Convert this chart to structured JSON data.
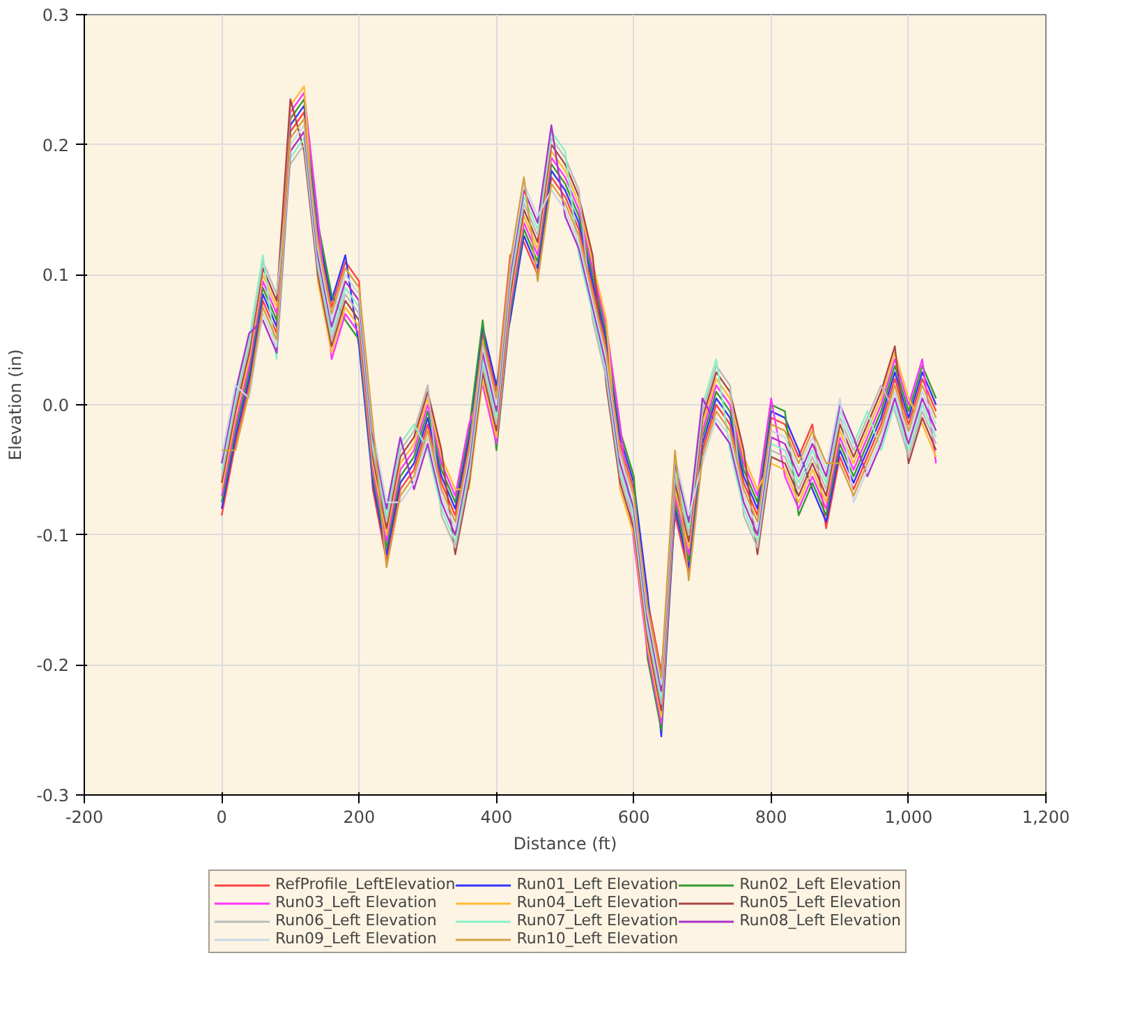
{
  "chart_data": {
    "type": "line",
    "xlabel": "Distance (ft)",
    "ylabel": "Elevation (in)",
    "xlim": [
      -200,
      1200
    ],
    "xticks": [
      -200,
      0,
      200,
      400,
      600,
      800,
      {
        "value": 1000,
        "label": "1,000"
      },
      {
        "value": 1200,
        "label": "1,200"
      }
    ],
    "ylim": [
      -0.3,
      0.3
    ],
    "yticks": [
      {
        "value": -0.3,
        "label": "-0.3"
      },
      {
        "value": -0.2,
        "label": "-0.2"
      },
      {
        "value": -0.1,
        "label": "-0.1"
      },
      {
        "value": 0,
        "label": "0.0"
      },
      {
        "value": 0.1,
        "label": "0.1"
      },
      {
        "value": 0.2,
        "label": "0.2"
      },
      {
        "value": 0.3,
        "label": "0.3"
      }
    ],
    "grid": true,
    "legend": "bottom",
    "line_style": "solid",
    "x": [
      0,
      20,
      40,
      60,
      80,
      100,
      120,
      140,
      160,
      180,
      200,
      220,
      240,
      260,
      280,
      300,
      320,
      340,
      360,
      380,
      400,
      420,
      440,
      460,
      480,
      500,
      520,
      540,
      560,
      580,
      600,
      620,
      640,
      660,
      680,
      700,
      720,
      740,
      760,
      780,
      800,
      820,
      840,
      860,
      880,
      900,
      920,
      940,
      960,
      980,
      1000,
      1020,
      1040
    ],
    "series": [
      {
        "name": "RefProfile_LeftElevation",
        "color": "#ff4040",
        "values": [
          -0.085,
          -0.03,
          0.015,
          0.08,
          0.055,
          0.21,
          0.225,
          0.13,
          0.075,
          0.11,
          0.095,
          -0.065,
          -0.12,
          -0.065,
          -0.05,
          -0.015,
          -0.06,
          -0.085,
          -0.03,
          0.055,
          0.01,
          0.115,
          0.125,
          0.1,
          0.175,
          0.16,
          0.135,
          0.09,
          0.045,
          -0.03,
          -0.065,
          -0.15,
          -0.205,
          -0.085,
          -0.13,
          -0.035,
          0.0,
          -0.015,
          -0.06,
          -0.085,
          -0.01,
          -0.015,
          -0.04,
          -0.015,
          -0.095,
          -0.04,
          -0.065,
          -0.04,
          -0.015,
          0.02,
          -0.015,
          0.02,
          -0.005
        ]
      },
      {
        "name": "Run01_Left Elevation",
        "color": "#3333ff",
        "values": [
          -0.08,
          -0.025,
          0.02,
          0.085,
          0.06,
          0.215,
          0.23,
          0.135,
          0.08,
          0.115,
          0.045,
          -0.06,
          -0.115,
          -0.06,
          -0.045,
          -0.01,
          -0.055,
          -0.08,
          -0.025,
          0.06,
          0.015,
          0.065,
          0.13,
          0.105,
          0.18,
          0.165,
          0.14,
          0.095,
          0.05,
          -0.025,
          -0.06,
          -0.145,
          -0.255,
          -0.08,
          -0.125,
          -0.03,
          0.005,
          -0.01,
          -0.055,
          -0.08,
          -0.005,
          -0.01,
          -0.035,
          -0.065,
          -0.09,
          -0.035,
          -0.06,
          -0.035,
          -0.01,
          0.025,
          -0.01,
          0.025,
          0.0
        ]
      },
      {
        "name": "Run02_Left Elevation",
        "color": "#339933",
        "values": [
          -0.075,
          -0.02,
          0.025,
          0.09,
          0.065,
          0.22,
          0.235,
          0.14,
          0.085,
          0.065,
          0.05,
          -0.055,
          -0.11,
          -0.055,
          -0.04,
          -0.005,
          -0.05,
          -0.075,
          -0.02,
          0.065,
          -0.035,
          0.07,
          0.135,
          0.11,
          0.185,
          0.17,
          0.145,
          0.1,
          0.055,
          -0.02,
          -0.055,
          -0.195,
          -0.25,
          -0.075,
          -0.12,
          -0.025,
          0.01,
          -0.005,
          -0.05,
          -0.075,
          0.0,
          -0.005,
          -0.085,
          -0.06,
          -0.085,
          -0.03,
          -0.055,
          -0.03,
          -0.005,
          0.03,
          -0.005,
          0.03,
          0.005
        ]
      },
      {
        "name": "Run03_Left Elevation",
        "color": "#ff33ff",
        "values": [
          -0.07,
          -0.015,
          0.03,
          0.095,
          0.07,
          0.225,
          0.24,
          0.145,
          0.035,
          0.07,
          0.055,
          -0.05,
          -0.105,
          -0.05,
          -0.035,
          0.0,
          -0.045,
          -0.07,
          -0.015,
          0.015,
          -0.03,
          0.075,
          0.14,
          0.115,
          0.19,
          0.175,
          0.15,
          0.105,
          0.06,
          -0.015,
          -0.105,
          -0.19,
          -0.245,
          -0.07,
          -0.115,
          -0.02,
          0.015,
          0.0,
          -0.045,
          -0.07,
          0.005,
          -0.055,
          -0.08,
          -0.055,
          -0.08,
          -0.025,
          -0.05,
          -0.025,
          0.0,
          0.035,
          0.0,
          0.035,
          -0.045
        ]
      },
      {
        "name": "Run04_Left Elevation",
        "color": "#ffbb33",
        "values": [
          -0.065,
          -0.01,
          0.035,
          0.1,
          0.075,
          0.23,
          0.245,
          0.095,
          0.04,
          0.075,
          0.06,
          -0.045,
          -0.1,
          -0.045,
          -0.03,
          0.005,
          -0.04,
          -0.065,
          -0.065,
          0.02,
          -0.025,
          0.08,
          0.145,
          0.12,
          0.195,
          0.18,
          0.155,
          0.11,
          0.065,
          -0.065,
          -0.1,
          -0.185,
          -0.24,
          -0.065,
          -0.11,
          -0.015,
          0.02,
          0.005,
          -0.04,
          -0.065,
          -0.045,
          -0.05,
          -0.075,
          -0.05,
          -0.075,
          -0.02,
          -0.045,
          -0.02,
          0.005,
          0.04,
          0.005,
          -0.015,
          -0.04
        ]
      },
      {
        "name": "Run05_Left Elevation",
        "color": "#aa4444",
        "values": [
          -0.06,
          -0.005,
          0.04,
          0.105,
          0.08,
          0.235,
          0.195,
          0.1,
          0.045,
          0.08,
          0.065,
          -0.04,
          -0.095,
          -0.04,
          -0.025,
          0.01,
          -0.035,
          -0.115,
          -0.06,
          0.025,
          -0.02,
          0.085,
          0.15,
          0.125,
          0.2,
          0.185,
          0.16,
          0.115,
          0.015,
          -0.06,
          -0.095,
          -0.18,
          -0.235,
          -0.06,
          -0.105,
          -0.01,
          0.025,
          0.01,
          -0.035,
          -0.115,
          -0.04,
          -0.045,
          -0.07,
          -0.045,
          -0.07,
          -0.015,
          -0.04,
          -0.015,
          0.01,
          0.045,
          -0.045,
          -0.01,
          -0.035
        ]
      },
      {
        "name": "Run06_Left Elevation",
        "color": "#bbbbbb",
        "values": [
          -0.055,
          0.0,
          0.045,
          0.11,
          0.085,
          0.185,
          0.2,
          0.105,
          0.05,
          0.085,
          0.07,
          -0.035,
          -0.09,
          -0.035,
          -0.02,
          0.015,
          -0.085,
          -0.11,
          -0.055,
          0.03,
          -0.015,
          0.09,
          0.155,
          0.13,
          0.205,
          0.19,
          0.165,
          0.065,
          0.02,
          -0.055,
          -0.09,
          -0.175,
          -0.23,
          -0.055,
          -0.1,
          -0.005,
          0.03,
          0.015,
          -0.085,
          -0.11,
          -0.035,
          -0.04,
          -0.065,
          -0.04,
          -0.065,
          -0.01,
          -0.035,
          -0.01,
          0.015,
          -0.005,
          -0.04,
          -0.005,
          -0.03
        ]
      },
      {
        "name": "Run07_Left Elevation",
        "color": "#88f0c8",
        "values": [
          -0.05,
          0.005,
          0.05,
          0.115,
          0.035,
          0.19,
          0.205,
          0.11,
          0.055,
          0.09,
          0.075,
          -0.03,
          -0.085,
          -0.03,
          -0.015,
          -0.035,
          -0.08,
          -0.105,
          -0.05,
          0.035,
          -0.01,
          0.095,
          0.16,
          0.135,
          0.21,
          0.195,
          0.115,
          0.07,
          0.025,
          -0.05,
          -0.085,
          -0.17,
          -0.225,
          -0.05,
          -0.095,
          0.0,
          0.035,
          -0.035,
          -0.08,
          -0.105,
          -0.03,
          -0.035,
          -0.06,
          -0.035,
          -0.06,
          -0.005,
          -0.03,
          -0.005,
          -0.035,
          0.0,
          -0.035,
          0.0,
          -0.025
        ]
      },
      {
        "name": "Run08_Left Elevation",
        "color": "#aa33cc",
        "values": [
          -0.045,
          0.01,
          0.055,
          0.065,
          0.04,
          0.195,
          0.21,
          0.115,
          0.06,
          0.095,
          0.08,
          -0.025,
          -0.08,
          -0.025,
          -0.065,
          -0.03,
          -0.075,
          -0.1,
          -0.045,
          0.04,
          -0.005,
          0.1,
          0.165,
          0.14,
          0.215,
          0.145,
          0.12,
          0.075,
          0.03,
          -0.045,
          -0.08,
          -0.165,
          -0.22,
          -0.045,
          -0.09,
          0.005,
          -0.015,
          -0.03,
          -0.075,
          -0.1,
          -0.025,
          -0.03,
          -0.055,
          -0.03,
          -0.055,
          0.0,
          -0.025,
          -0.055,
          -0.03,
          0.005,
          -0.03,
          0.005,
          -0.02
        ]
      },
      {
        "name": "Run09_Left Elevation",
        "color": "#c8d8e8",
        "values": [
          -0.04,
          0.015,
          0.005,
          0.07,
          0.045,
          0.2,
          0.215,
          0.12,
          0.065,
          0.1,
          0.085,
          -0.02,
          -0.075,
          -0.075,
          -0.06,
          -0.025,
          -0.07,
          -0.095,
          -0.04,
          0.045,
          0.0,
          0.105,
          0.17,
          0.145,
          0.165,
          0.15,
          0.125,
          0.08,
          0.035,
          -0.04,
          -0.075,
          -0.16,
          -0.215,
          -0.04,
          -0.085,
          -0.045,
          -0.01,
          -0.025,
          -0.07,
          -0.095,
          -0.02,
          -0.025,
          -0.05,
          -0.025,
          -0.05,
          0.005,
          -0.075,
          -0.05,
          -0.025,
          0.01,
          -0.025,
          0.01,
          -0.015
        ]
      },
      {
        "name": "Run10_Left Elevation",
        "color": "#d4a040",
        "values": [
          -0.035,
          -0.035,
          0.01,
          0.075,
          0.05,
          0.205,
          0.22,
          0.125,
          0.07,
          0.105,
          0.09,
          -0.015,
          -0.125,
          -0.07,
          -0.055,
          -0.02,
          -0.065,
          -0.09,
          -0.035,
          0.05,
          0.005,
          0.11,
          0.175,
          0.095,
          0.17,
          0.155,
          0.13,
          0.085,
          0.04,
          -0.035,
          -0.07,
          -0.155,
          -0.21,
          -0.035,
          -0.135,
          -0.04,
          -0.005,
          -0.02,
          -0.065,
          -0.09,
          -0.015,
          -0.02,
          -0.045,
          -0.02,
          -0.045,
          -0.045,
          -0.07,
          -0.045,
          -0.02,
          0.015,
          -0.02,
          0.015,
          -0.01
        ]
      }
    ]
  }
}
